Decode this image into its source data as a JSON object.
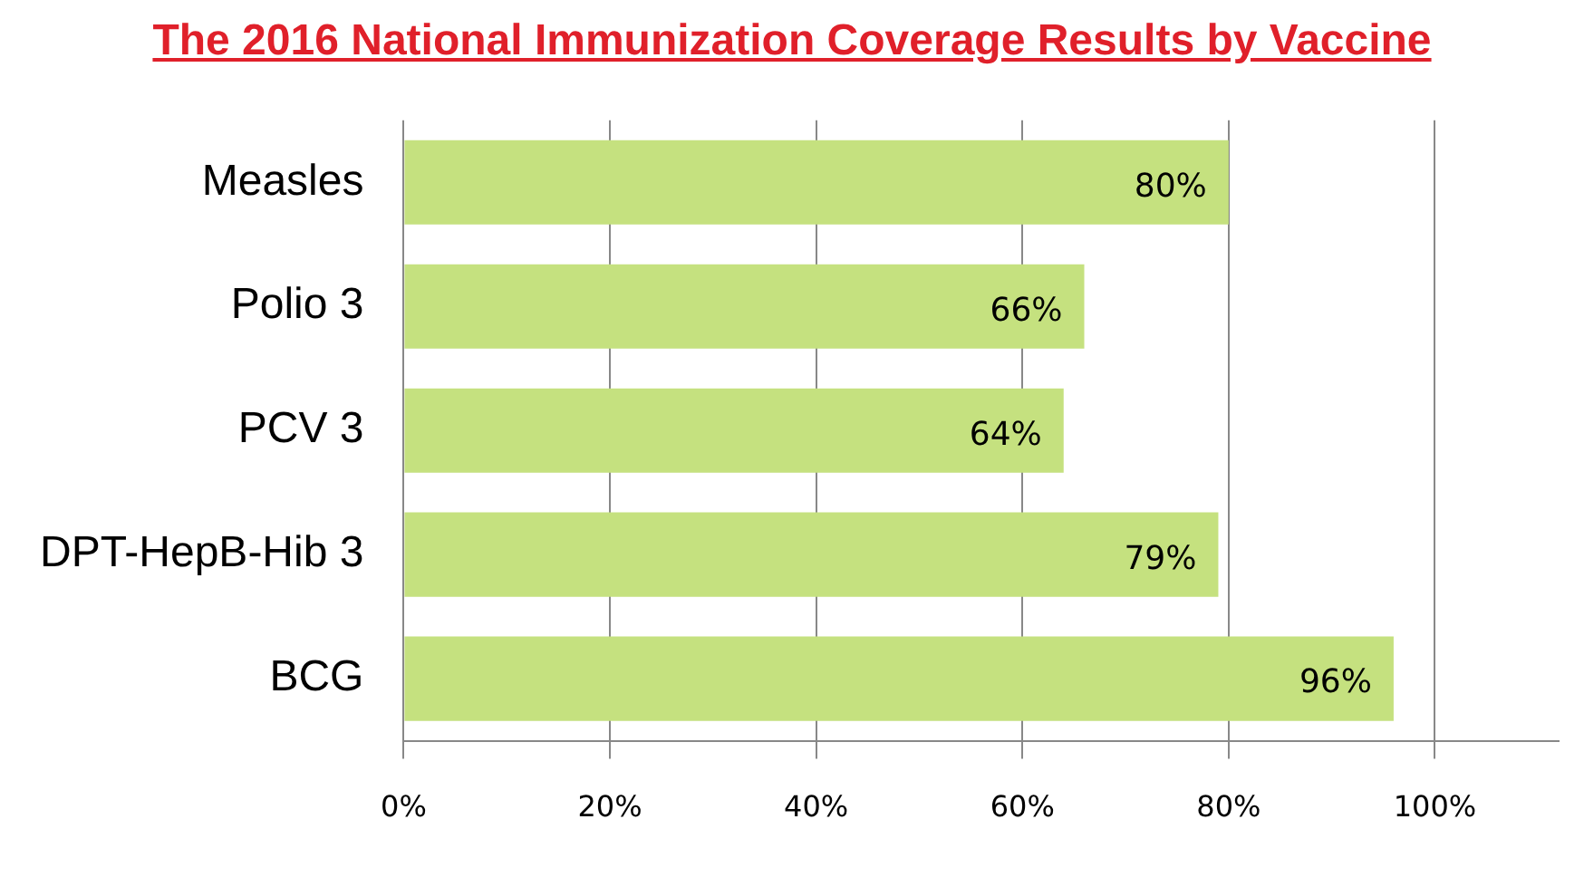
{
  "chart_data": {
    "type": "bar",
    "orientation": "horizontal",
    "title": "The 2016 National Immunization Coverage Results by Vaccine",
    "categories": [
      "Measles",
      "Polio 3",
      "PCV 3",
      "DPT-HepB-Hib 3",
      "BCG"
    ],
    "values": [
      80,
      66,
      64,
      79,
      96
    ],
    "color": "#c5e17f",
    "value_labels": [
      "80%",
      "66%",
      "64%",
      "79%",
      "96%"
    ],
    "xlim": [
      0,
      112
    ],
    "xticks": [
      {
        "value": 0,
        "label": "0%"
      },
      {
        "value": 20,
        "label": "20%"
      },
      {
        "value": 40,
        "label": "40%"
      },
      {
        "value": 60,
        "label": "60%"
      },
      {
        "value": 80,
        "label": "80%"
      },
      {
        "value": 100,
        "label": "100%"
      }
    ],
    "grid": "x",
    "legend": false
  }
}
